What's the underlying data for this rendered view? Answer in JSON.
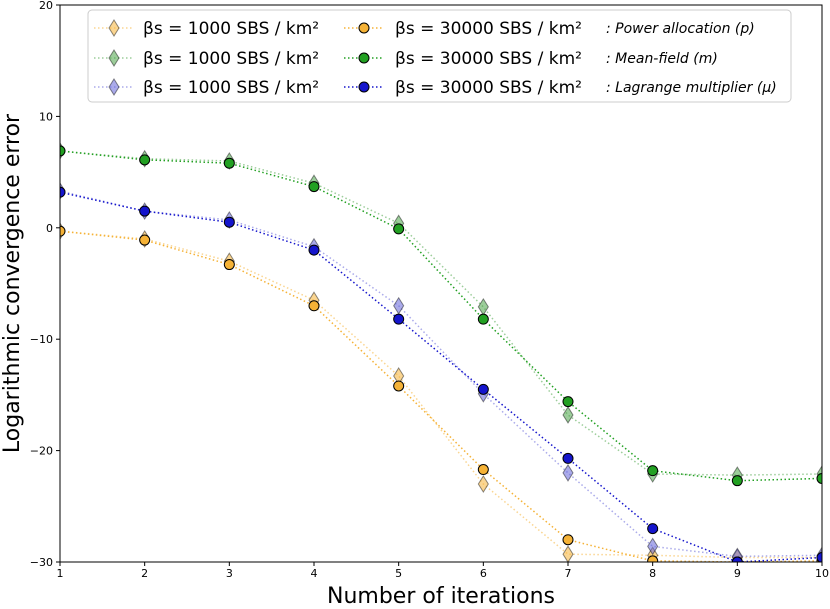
{
  "chart_data": {
    "type": "line",
    "title": "",
    "xlabel": "Number of iterations",
    "ylabel": "Logarithmic convergence error",
    "xlim": [
      1,
      10
    ],
    "ylim": [
      -30,
      20
    ],
    "xticks": [
      1,
      2,
      3,
      4,
      5,
      6,
      7,
      8,
      9,
      10
    ],
    "yticks": [
      -30,
      -20,
      -10,
      0,
      10,
      20
    ],
    "ytick_labels": [
      "−30",
      "−20",
      "−10",
      "0",
      "10",
      "20"
    ],
    "grid": false,
    "legend_position": "top-center",
    "x": [
      1,
      2,
      3,
      4,
      5,
      6,
      7,
      8,
      9,
      10
    ],
    "series": [
      {
        "name": "βs = 1000 SBS / km² (p)",
        "beta_label": "βs = 1000  SBS / km²",
        "variable": "p",
        "marker": "diamond",
        "color": "#f5b236",
        "values": [
          -0.3,
          -1.0,
          -3.0,
          -6.5,
          -13.3,
          -23.0,
          -29.3,
          -29.4,
          -29.6,
          -29.6
        ]
      },
      {
        "name": "βs = 1000 SBS / km² (m)",
        "beta_label": "βs = 1000  SBS / km²",
        "variable": "m",
        "marker": "diamond",
        "color": "#4aa447",
        "values": [
          6.9,
          6.2,
          6.0,
          4.0,
          0.4,
          -7.1,
          -16.8,
          -22.1,
          -22.2,
          -22.1
        ]
      },
      {
        "name": "βs = 1000 SBS / km² (μ)",
        "beta_label": "βs = 1000  SBS / km²",
        "variable": "mu",
        "marker": "diamond",
        "color": "#6464d8",
        "values": [
          3.3,
          1.5,
          0.7,
          -1.7,
          -7.0,
          -14.9,
          -22.0,
          -28.6,
          -29.5,
          -29.4
        ]
      },
      {
        "name": "βs = 30000 SBS / km² : Power allocation (p)",
        "beta_label": "βs = 30000  SBS / km²",
        "desc": ": Power allocation (p)",
        "variable": "p",
        "marker": "circle",
        "color": "#f5b236",
        "values": [
          -0.3,
          -1.1,
          -3.3,
          -7.0,
          -14.2,
          -21.7,
          -28.0,
          -29.9,
          -30.0,
          -29.9
        ]
      },
      {
        "name": "βs = 30000 SBS / km² : Mean-field (m)",
        "beta_label": "βs = 30000  SBS / km²",
        "desc": ": Mean-field (m)",
        "variable": "m",
        "marker": "circle",
        "color": "#22a022",
        "values": [
          6.9,
          6.1,
          5.8,
          3.7,
          -0.1,
          -8.2,
          -15.6,
          -21.8,
          -22.7,
          -22.5
        ]
      },
      {
        "name": "βs = 30000 SBS / km² : Lagrange multiplier (μ)",
        "beta_label": "βs = 30000  SBS / km²",
        "desc": ": Lagrange multiplier (μ)",
        "variable": "mu",
        "marker": "circle",
        "color": "#1515cc",
        "values": [
          3.2,
          1.5,
          0.5,
          -2.0,
          -8.2,
          -14.5,
          -20.7,
          -27.0,
          -30.0,
          -29.6
        ]
      }
    ]
  }
}
